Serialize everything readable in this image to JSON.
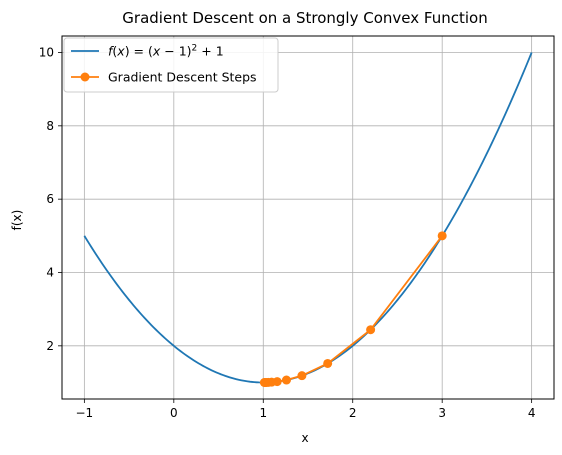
{
  "chart_data": {
    "type": "line",
    "title": "Gradient Descent on a Strongly Convex Function",
    "xlabel": "x",
    "ylabel": "f(x)",
    "xlim": [
      -1.25,
      4.25
    ],
    "ylim": [
      0.55,
      10.45
    ],
    "xticks": [
      -1,
      0,
      1,
      2,
      3,
      4
    ],
    "yticks": [
      2,
      4,
      6,
      8,
      10
    ],
    "grid": true,
    "legend_position": "top-left",
    "series": [
      {
        "name": "f(x) = (x − 1)² + 1",
        "kind": "function",
        "color": "#1f77b4",
        "x_range": [
          -1,
          4
        ]
      },
      {
        "name": "Gradient Descent Steps",
        "kind": "markers-line",
        "color": "#ff7f0e",
        "x": [
          3.0,
          2.2,
          1.72,
          1.432,
          1.2592,
          1.1555,
          1.0933,
          1.056,
          1.0336,
          1.0202,
          1.0121
        ],
        "y": [
          5.0,
          2.44,
          1.5184,
          1.1866,
          1.0672,
          1.0242,
          1.0087,
          1.0031,
          1.0011,
          1.0004,
          1.0001
        ]
      }
    ]
  }
}
